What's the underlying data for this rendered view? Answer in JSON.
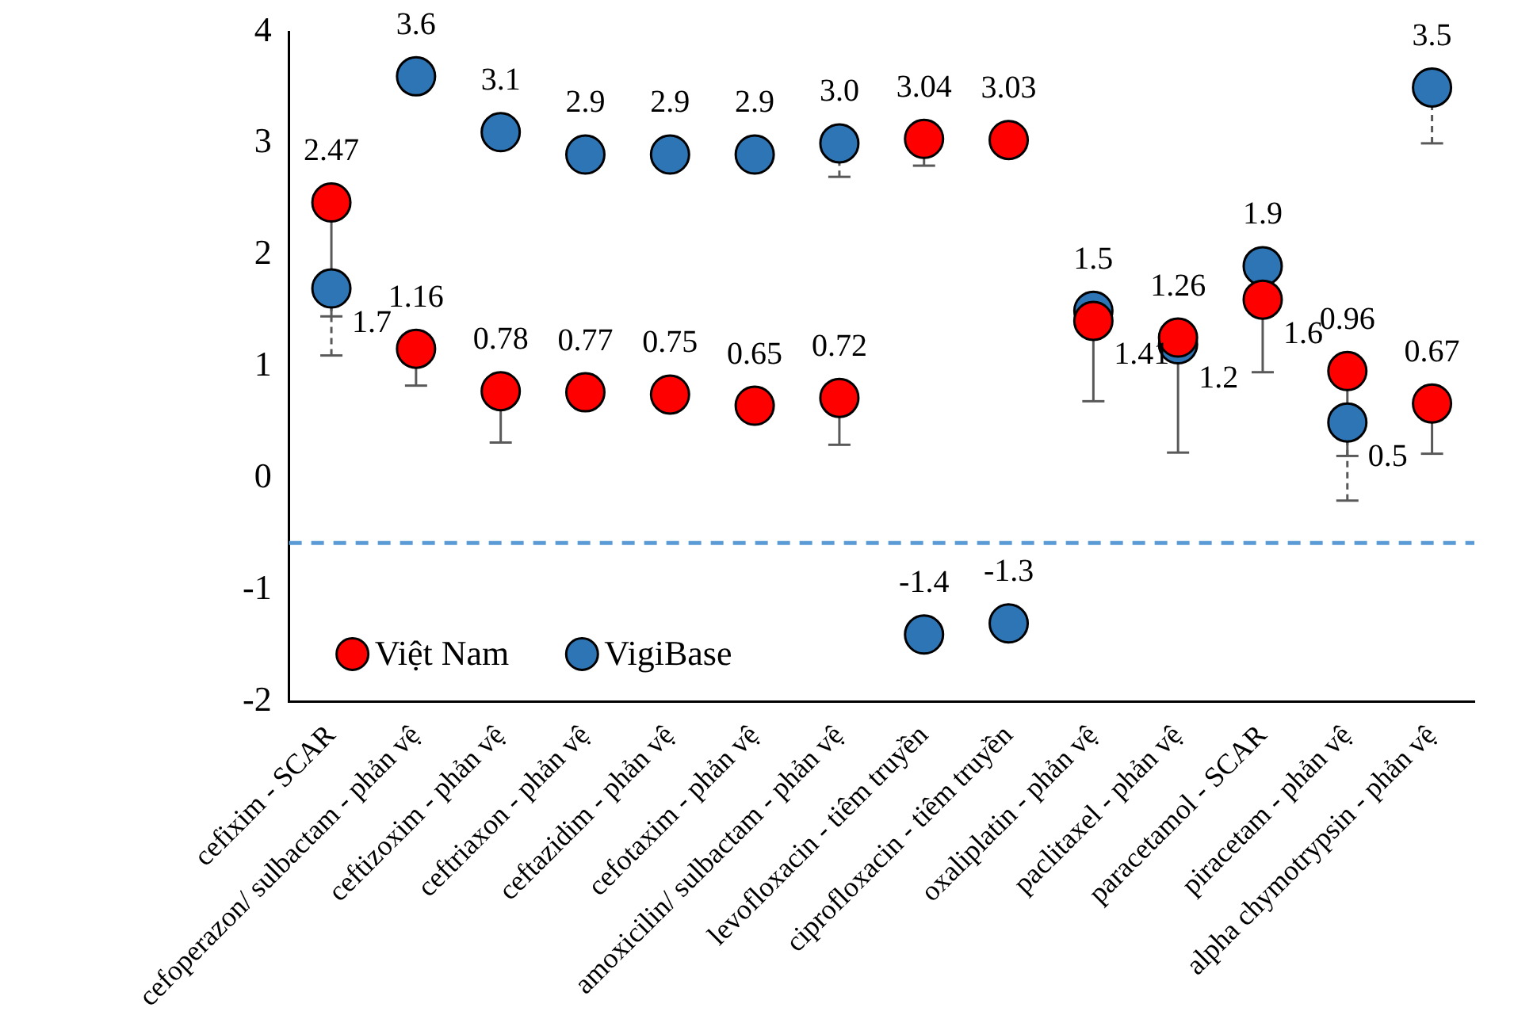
{
  "chart_data": {
    "type": "scatter",
    "categories": [
      "cefixim - SCAR",
      "cefoperazon/ sulbactam - phản vệ",
      "ceftizoxim - phản vệ",
      "ceftriaxon - phản vệ",
      "ceftazidim - phản vệ",
      "cefotaxim - phản vệ",
      "amoxicilin/ sulbactam - phản vệ",
      "levofloxacin - tiêm truyền",
      "ciprofloxacin - tiêm truyền",
      "oxaliplatin - phản vệ",
      "paclitaxel - phản vệ",
      "paracetamol - SCAR",
      "piracetam - phản vệ",
      "alpha chymotrypsin - phản vệ"
    ],
    "series": [
      {
        "name": "Việt Nam",
        "color": "#ff0000",
        "values": [
          2.47,
          1.16,
          0.78,
          0.77,
          0.75,
          0.65,
          0.72,
          3.04,
          3.03,
          1.41,
          1.26,
          1.6,
          0.96,
          0.67
        ],
        "value_labels": [
          "2.47",
          "1.16",
          "0.78",
          "0.77",
          "0.75",
          "0.65",
          "0.72",
          "3.04",
          "3.03",
          "1.41",
          "1.26",
          "1.6",
          "0.96",
          "0.67"
        ],
        "errors": [
          [
            1.45,
            2.47
          ],
          [
            0.83,
            1.16
          ],
          [
            0.32,
            0.78
          ],
          null,
          null,
          null,
          [
            0.3,
            0.72
          ],
          [
            2.8,
            3.04
          ],
          null,
          [
            0.69,
            1.41
          ],
          [
            0.23,
            1.26
          ],
          [
            0.95,
            1.6
          ],
          [
            0.2,
            0.96
          ],
          [
            0.22,
            0.67
          ]
        ]
      },
      {
        "name": "VigiBase",
        "color": "#2e75b6",
        "values": [
          1.7,
          3.6,
          3.1,
          2.9,
          2.9,
          2.9,
          3.0,
          -1.4,
          -1.3,
          1.5,
          1.2,
          1.9,
          0.5,
          3.5
        ],
        "value_labels": [
          "1.7",
          "3.6",
          "3.1",
          "2.9",
          "2.9",
          "2.9",
          "3.0",
          "-1.4",
          "-1.3",
          "1.5",
          "1.2",
          "1.9",
          "0.5",
          "3.5"
        ],
        "errors": [
          [
            1.1,
            1.7
          ],
          null,
          null,
          null,
          null,
          null,
          [
            2.7,
            3.0
          ],
          null,
          null,
          null,
          null,
          null,
          [
            -0.2,
            0.5
          ],
          [
            3.0,
            3.5
          ]
        ]
      }
    ],
    "ylim": [
      -2,
      4
    ],
    "yticks": [
      -2,
      -1,
      0,
      1,
      2,
      3,
      4
    ],
    "grid": false,
    "legend": "bottom left",
    "marker": "circle",
    "ref_lines": [
      {
        "axis": "y",
        "value": -0.58,
        "color": "#5b9bd5",
        "line_style": "dashed"
      }
    ]
  }
}
